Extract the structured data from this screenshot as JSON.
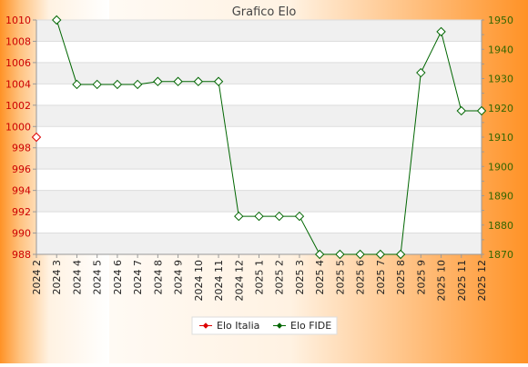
{
  "chart_data": {
    "type": "line",
    "title": "Grafico Elo",
    "categories": [
      "2024 2",
      "2024 3",
      "2024 4",
      "2024 5",
      "2024 6",
      "2024 7",
      "2024 8",
      "2024 9",
      "2024 10",
      "2024 11",
      "2024 12",
      "2025 1",
      "2025 2",
      "2025 3",
      "2025 4",
      "2025 5",
      "2025 6",
      "2025 7",
      "2025 8",
      "2025 9",
      "2025 10",
      "2025 11",
      "2025 12"
    ],
    "left_axis": {
      "ylim": [
        988,
        1010
      ],
      "ticks": [
        988,
        990,
        992,
        994,
        996,
        998,
        1000,
        1002,
        1004,
        1006,
        1008,
        1010
      ],
      "color": "#cc0000"
    },
    "right_axis": {
      "ylim": [
        1870,
        1950
      ],
      "ticks": [
        1870,
        1880,
        1890,
        1900,
        1910,
        1920,
        1930,
        1940,
        1950
      ],
      "color": "#336600"
    },
    "series": [
      {
        "name": "Elo Italia",
        "axis": "left",
        "color": "#dd0000",
        "values": [
          999,
          null,
          null,
          null,
          null,
          null,
          null,
          null,
          null,
          null,
          null,
          null,
          null,
          null,
          null,
          null,
          null,
          null,
          null,
          null,
          null,
          null,
          null
        ]
      },
      {
        "name": "Elo FIDE",
        "axis": "right",
        "color": "#006600",
        "values": [
          null,
          1950,
          1928,
          1928,
          1928,
          1928,
          1929,
          1929,
          1929,
          1929,
          1883,
          1883,
          1883,
          1883,
          1870,
          1870,
          1870,
          1870,
          1870,
          1932,
          1946,
          1919,
          1919
        ]
      }
    ],
    "grid": true,
    "legend_position": "bottom-center"
  }
}
